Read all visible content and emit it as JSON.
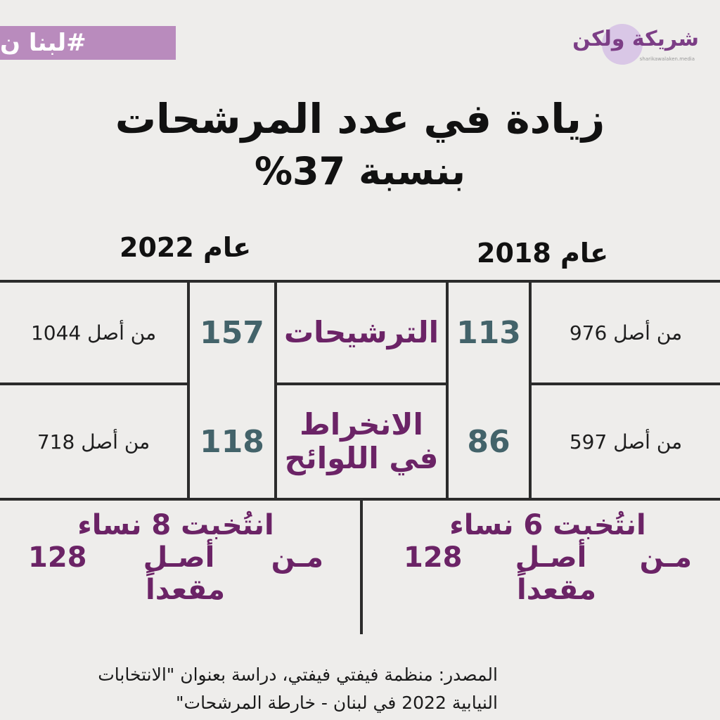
{
  "tag": "#لبنا ن",
  "logo": {
    "name": "شريكة ولكن",
    "subtitle": "sharikawalaken.media"
  },
  "title": {
    "line1": "زيادة في عدد المرشحات",
    "line2": "بنسبة 37%"
  },
  "years": {
    "left": "عام 2022",
    "right": "عام 2018"
  },
  "rows": [
    {
      "label": "الترشيحات",
      "y2022": {
        "value": "157",
        "of": "من أصل 1044"
      },
      "y2018": {
        "value": "113",
        "of": "من أصل 976"
      }
    },
    {
      "label_line1": "الانخراط",
      "label_line2": "في اللوائح",
      "y2022": {
        "value": "118",
        "of": "من أصل 718"
      },
      "y2018": {
        "value": "86",
        "of": "من أصل 597"
      }
    }
  ],
  "women": {
    "y2022": {
      "line1": "انتُخبت 8 نساء",
      "w1": "مـن",
      "w2": "أصـل",
      "w3": "128",
      "line3": "مقعداً"
    },
    "y2018": {
      "line1": "انتُخبت 6 نساء",
      "w1": "مـن",
      "w2": "أصـل",
      "w3": "128",
      "line3": "مقعداً"
    }
  },
  "source": {
    "line1": "المصدر: منظمة فيفتي فيفتي، دراسة بعنوان \"الانتخابات",
    "line2": "النيابية 2022 في لبنان - خارطة المرشحات\""
  }
}
